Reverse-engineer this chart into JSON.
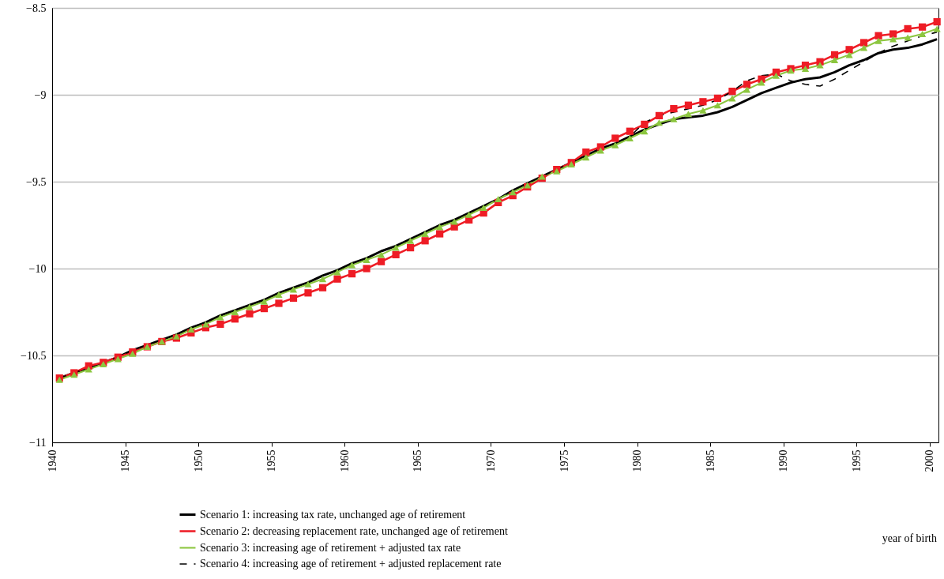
{
  "chart_data": {
    "type": "line",
    "x": [
      1940.5,
      1941.5,
      1942.5,
      1943.5,
      1944.5,
      1945.5,
      1946.5,
      1947.5,
      1948.5,
      1949.5,
      1950.5,
      1951.5,
      1952.5,
      1953.5,
      1954.5,
      1955.5,
      1956.5,
      1957.5,
      1958.5,
      1959.5,
      1960.5,
      1961.5,
      1962.5,
      1963.5,
      1964.5,
      1965.5,
      1966.5,
      1967.5,
      1968.5,
      1969.5,
      1970.5,
      1971.5,
      1972.5,
      1973.5,
      1974.5,
      1975.5,
      1976.5,
      1977.5,
      1978.5,
      1979.5,
      1980.5,
      1981.5,
      1982.5,
      1983.5,
      1984.5,
      1985.5,
      1986.5,
      1987.5,
      1988.5,
      1989.5,
      1990.5,
      1991.5,
      1992.5,
      1993.5,
      1994.5,
      1995.5,
      1996.5,
      1997.5,
      1998.5,
      1999.5,
      2000.5
    ],
    "series": [
      {
        "name": "Scenario 1: increasing tax rate, unchanged age of retirement",
        "color": "#000000",
        "marker": "none",
        "line_style": "solid",
        "values": [
          -10.63,
          -10.6,
          -10.57,
          -10.54,
          -10.51,
          -10.47,
          -10.44,
          -10.41,
          -10.38,
          -10.34,
          -10.31,
          -10.27,
          -10.24,
          -10.21,
          -10.18,
          -10.14,
          -10.11,
          -10.08,
          -10.04,
          -10.01,
          -9.97,
          -9.94,
          -9.9,
          -9.87,
          -9.83,
          -9.79,
          -9.75,
          -9.72,
          -9.68,
          -9.64,
          -9.6,
          -9.55,
          -9.51,
          -9.47,
          -9.43,
          -9.39,
          -9.35,
          -9.31,
          -9.28,
          -9.24,
          -9.2,
          -9.17,
          -9.14,
          -9.13,
          -9.12,
          -9.1,
          -9.07,
          -9.03,
          -8.99,
          -8.96,
          -8.93,
          -8.91,
          -8.9,
          -8.87,
          -8.83,
          -8.8,
          -8.76,
          -8.74,
          -8.73,
          -8.71,
          -8.68
        ]
      },
      {
        "name": "Scenario 2: decreasing replacement rate, unchanged age of retirement",
        "color": "#ee1c25",
        "marker": "square",
        "line_style": "solid",
        "values": [
          -10.63,
          -10.6,
          -10.56,
          -10.54,
          -10.51,
          -10.48,
          -10.45,
          -10.42,
          -10.4,
          -10.37,
          -10.34,
          -10.32,
          -10.29,
          -10.26,
          -10.23,
          -10.2,
          -10.17,
          -10.14,
          -10.11,
          -10.06,
          -10.03,
          -10.0,
          -9.96,
          -9.92,
          -9.88,
          -9.84,
          -9.8,
          -9.76,
          -9.72,
          -9.68,
          -9.62,
          -9.58,
          -9.53,
          -9.48,
          -9.43,
          -9.39,
          -9.33,
          -9.3,
          -9.25,
          -9.21,
          -9.17,
          -9.12,
          -9.08,
          -9.06,
          -9.04,
          -9.02,
          -8.98,
          -8.94,
          -8.91,
          -8.87,
          -8.85,
          -8.83,
          -8.81,
          -8.77,
          -8.74,
          -8.7,
          -8.66,
          -8.65,
          -8.62,
          -8.61,
          -8.58
        ]
      },
      {
        "name": "Scenario 3: increasing age of retirement + adjusted tax rate",
        "color": "#8cc63f",
        "marker": "triangle",
        "line_style": "solid",
        "values": [
          -10.64,
          -10.61,
          -10.58,
          -10.55,
          -10.52,
          -10.49,
          -10.45,
          -10.42,
          -10.39,
          -10.35,
          -10.32,
          -10.28,
          -10.25,
          -10.22,
          -10.19,
          -10.15,
          -10.12,
          -10.09,
          -10.06,
          -10.02,
          -9.98,
          -9.95,
          -9.92,
          -9.88,
          -9.84,
          -9.8,
          -9.76,
          -9.73,
          -9.69,
          -9.65,
          -9.6,
          -9.56,
          -9.52,
          -9.47,
          -9.44,
          -9.4,
          -9.36,
          -9.32,
          -9.29,
          -9.25,
          -9.21,
          -9.16,
          -9.14,
          -9.11,
          -9.09,
          -9.06,
          -9.02,
          -8.97,
          -8.93,
          -8.89,
          -8.86,
          -8.85,
          -8.83,
          -8.8,
          -8.77,
          -8.73,
          -8.69,
          -8.68,
          -8.67,
          -8.65,
          -8.62
        ]
      },
      {
        "name": "Scenario 4: increasing age of retirement + adjusted replacement rate",
        "color": "#000000",
        "marker": "none",
        "line_style": "dashed",
        "values": [
          -10.63,
          -10.6,
          -10.57,
          -10.54,
          -10.51,
          -10.47,
          -10.44,
          -10.41,
          -10.38,
          -10.34,
          -10.31,
          -10.27,
          -10.24,
          -10.21,
          -10.18,
          -10.14,
          -10.11,
          -10.08,
          -10.04,
          -10.01,
          -9.97,
          -9.94,
          -9.9,
          -9.87,
          -9.83,
          -9.79,
          -9.75,
          -9.72,
          -9.68,
          -9.64,
          -9.6,
          -9.55,
          -9.51,
          -9.47,
          -9.43,
          -9.39,
          -9.35,
          -9.31,
          -9.28,
          -9.24,
          -9.16,
          -9.12,
          -9.1,
          -9.08,
          -9.06,
          -9.03,
          -8.98,
          -8.92,
          -8.89,
          -8.88,
          -8.92,
          -8.94,
          -8.95,
          -8.91,
          -8.86,
          -8.81,
          -8.76,
          -8.72,
          -8.69,
          -8.66,
          -8.64
        ]
      }
    ],
    "annotations": [
      "year of birth"
    ],
    "xlim": [
      1940,
      2000.6
    ],
    "xticks": [
      1940,
      1945,
      1950,
      1955,
      1960,
      1965,
      1970,
      1975,
      1980,
      1985,
      1990,
      1995,
      2000
    ],
    "ylim": [
      -11,
      -8.5
    ],
    "yticks": [
      -11,
      -10.5,
      -10,
      -9.5,
      -9,
      -8.5
    ],
    "grid": "y",
    "legend": "bottom"
  }
}
